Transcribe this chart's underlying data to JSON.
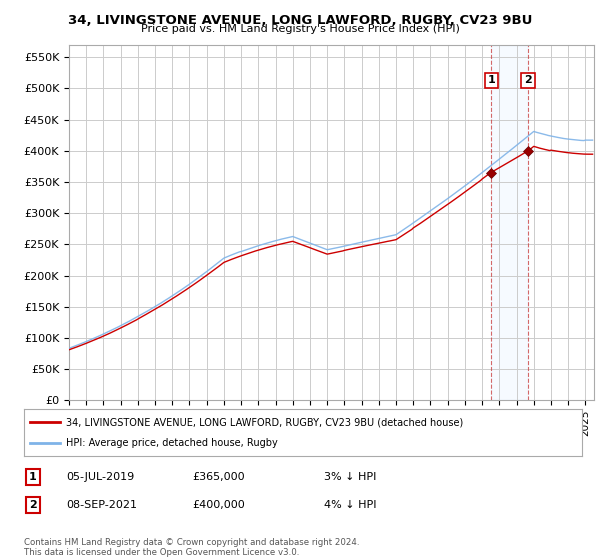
{
  "title_line1": "34, LIVINGSTONE AVENUE, LONG LAWFORD, RUGBY, CV23 9BU",
  "title_line2": "Price paid vs. HM Land Registry's House Price Index (HPI)",
  "ylim": [
    0,
    570000
  ],
  "xlim_start": 1995.0,
  "xlim_end": 2025.5,
  "yticks": [
    0,
    50000,
    100000,
    150000,
    200000,
    250000,
    300000,
    350000,
    400000,
    450000,
    500000,
    550000
  ],
  "ytick_labels": [
    "£0",
    "£50K",
    "£100K",
    "£150K",
    "£200K",
    "£250K",
    "£300K",
    "£350K",
    "£400K",
    "£450K",
    "£500K",
    "£550K"
  ],
  "legend_entry1": "34, LIVINGSTONE AVENUE, LONG LAWFORD, RUGBY, CV23 9BU (detached house)",
  "legend_entry2": "HPI: Average price, detached house, Rugby",
  "sale1_date": 2019.54,
  "sale1_price": 365000,
  "sale2_date": 2021.67,
  "sale2_price": 400000,
  "footer": "Contains HM Land Registry data © Crown copyright and database right 2024.\nThis data is licensed under the Open Government Licence v3.0.",
  "hpi_color": "#7fb3e8",
  "price_color": "#cc0000",
  "bg_color": "#ffffff",
  "grid_color": "#cccccc",
  "shade_color": "#ddeeff"
}
